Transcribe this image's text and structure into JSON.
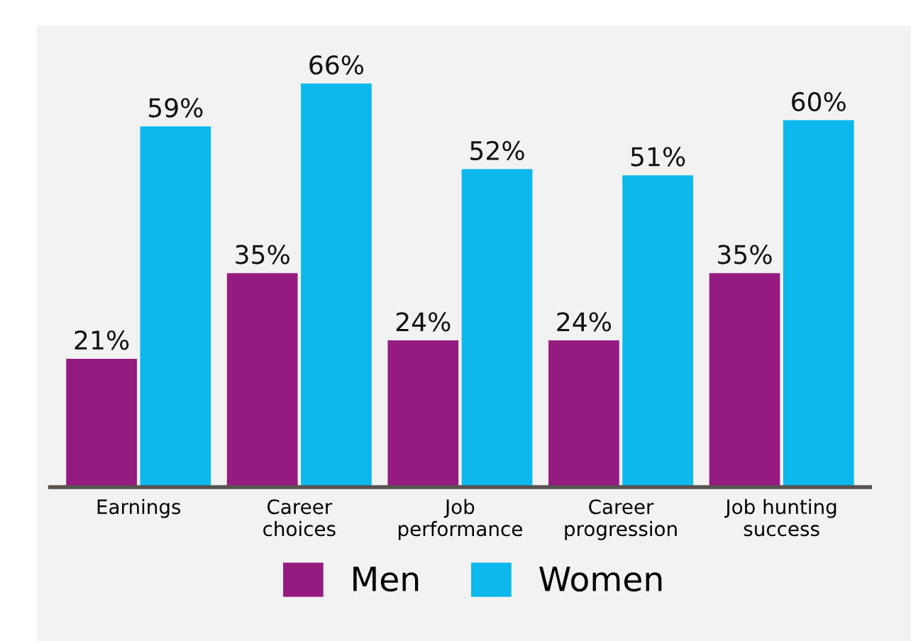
{
  "chart_data": {
    "type": "bar",
    "categories": [
      "Earnings",
      "Career\nchoices",
      "Job\nperformance",
      "Career\nprogression",
      "Job hunting\nsuccess"
    ],
    "series": [
      {
        "name": "Men",
        "color": "#951b81",
        "values": [
          21,
          35,
          24,
          24,
          35
        ],
        "value_labels": [
          "21%",
          "35%",
          "24%",
          "24%",
          "35%"
        ]
      },
      {
        "name": "Women",
        "color": "#0cb8ec",
        "values": [
          59,
          66,
          52,
          51,
          60
        ],
        "value_labels": [
          "59%",
          "66%",
          "52%",
          "51%",
          "60%"
        ]
      }
    ],
    "tick_labels": "x",
    "grid": false,
    "legend": "bottom"
  }
}
